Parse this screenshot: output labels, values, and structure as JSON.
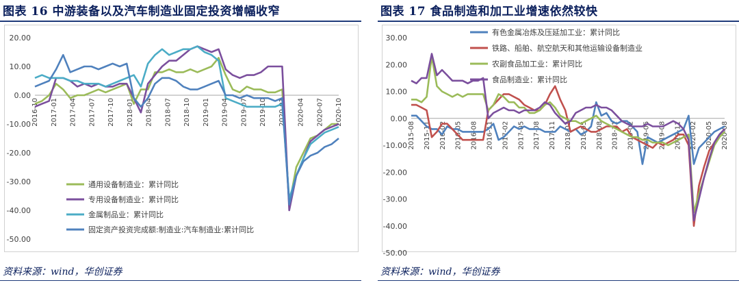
{
  "left": {
    "title": "图表 16   中游装备以及汽车制造业固定投资增幅收窄",
    "source": "资料来源：wind，华创证券"
  },
  "right": {
    "title": "图表 17   食品制造和加工业增速依然较快",
    "source": "资料来源：wind，华创证券"
  },
  "chart_data": [
    {
      "type": "line",
      "ylim": [
        -50,
        20
      ],
      "y_ticks": [
        "20.00",
        "10.00",
        "0.00",
        "-10.00",
        "-20.00",
        "-30.00",
        "-40.00",
        "-50.00"
      ],
      "x_tick_labels": [
        "2016-10",
        "2017-01",
        "2017-04",
        "2017-07",
        "2017-10",
        "2018-01",
        "2018-04",
        "2018-07",
        "2018-10",
        "2019-01",
        "2019-04",
        "2019-07",
        "2019-10",
        "2020-01",
        "2020-04",
        "2020-07",
        "2020-10"
      ],
      "legend_position": "bottom-left",
      "series": [
        {
          "name": "通用设备制造业：累计同比",
          "color": "#9bbb59",
          "values": [
            -3,
            -2,
            0,
            4,
            2,
            -1,
            0,
            0,
            1,
            2,
            1,
            2,
            3,
            4,
            -3,
            2,
            2,
            8,
            8,
            9,
            8,
            8,
            9,
            8,
            9,
            10,
            13,
            7,
            2,
            1,
            3,
            2,
            2,
            1,
            1,
            2,
            -38,
            -25,
            -20,
            -15,
            -14,
            -12,
            -10,
            -10
          ]
        },
        {
          "name": "专用设备制造业：累计同比",
          "color": "#7b4f9d",
          "values": [
            -4,
            -3,
            -2,
            6,
            6,
            5,
            3,
            4,
            3,
            4,
            3,
            3,
            4,
            4,
            -1,
            -6,
            4,
            7,
            10,
            12,
            12,
            14,
            16,
            17,
            16,
            15,
            16,
            9,
            7,
            6,
            7,
            7,
            8,
            10,
            10,
            10,
            -40,
            -28,
            -22,
            -16,
            -14,
            -12,
            -11,
            -10
          ]
        },
        {
          "name": "金属制品业：累计同比",
          "color": "#4bacc6",
          "values": [
            6,
            7,
            6,
            6,
            6,
            5,
            5,
            4,
            4,
            4,
            3,
            4,
            5,
            6,
            7,
            3,
            11,
            14,
            16,
            14,
            15,
            16,
            16,
            17,
            15,
            14,
            12,
            -1,
            -2,
            -3,
            -4,
            -4,
            -4,
            -4,
            -4,
            -3,
            -36,
            -28,
            -22,
            -17,
            -15,
            -13,
            -12,
            -11
          ]
        },
        {
          "name": "固定资产投资完成额:制造业:汽车制造业:累计同比",
          "color": "#4f81bd",
          "values": [
            3,
            4,
            5,
            9,
            14,
            8,
            9,
            10,
            10,
            9,
            10,
            11,
            10,
            11,
            -1,
            -4,
            -1,
            4,
            6,
            6,
            5,
            3,
            2,
            2,
            3,
            4,
            5,
            0,
            0,
            -1,
            0,
            -1,
            -1,
            -1,
            -2,
            -1,
            -38,
            -28,
            -23,
            -21,
            -20,
            -18,
            -17,
            -15
          ]
        }
      ]
    },
    {
      "type": "line",
      "ylim": [
        -50,
        30
      ],
      "y_ticks": [
        "30.00",
        "20.00",
        "10.00",
        "0.00",
        "-10.00",
        "-20.00",
        "-30.00",
        "-40.00",
        "-50.00"
      ],
      "x_tick_labels": [
        "2015-08",
        "2015-11",
        "2016-02",
        "2016-05",
        "2016-08",
        "2016-11",
        "2017-02",
        "2017-05",
        "2017-08",
        "2017-11",
        "2018-02",
        "2018-05",
        "2018-08",
        "2018-11",
        "2019-02",
        "2019-05",
        "2019-08",
        "2019-11",
        "2020-02",
        "2020-05",
        "2020-08"
      ],
      "legend_position": "top-left",
      "series": [
        {
          "name": "有色金属冶炼及压延加工业：累计同比",
          "color": "#4f81bd",
          "values": [
            1,
            1,
            -1,
            -3,
            -4,
            -4,
            -6,
            -3,
            -4,
            -4,
            -5,
            -5,
            -5,
            -5,
            -5,
            -4,
            -2,
            -8,
            -7,
            -5,
            -3,
            -4,
            -3,
            -4,
            -4,
            -4,
            -5,
            -5,
            -5,
            -3,
            -4,
            -5,
            -4,
            -6,
            -5,
            -3,
            6,
            1,
            2,
            -1,
            -2,
            -1,
            -1,
            -3,
            -5,
            -17,
            -7,
            -8,
            -9,
            -8,
            -7,
            -6,
            -5,
            -4,
            1,
            -17,
            -11,
            -9,
            -7,
            -5,
            -4,
            -3
          ]
        },
        {
          "name": "铁路、船舶、航空航天和其他运输设备制造业",
          "color": "#c0504d",
          "values": [
            5,
            5,
            4,
            3,
            -7,
            -5,
            -2,
            -2,
            -4,
            -6,
            -8,
            -8,
            -8,
            -8,
            -8,
            3,
            5,
            7,
            9,
            9,
            8,
            7,
            5,
            4,
            3,
            3,
            5,
            9,
            12,
            7,
            3,
            -5,
            -4,
            -3,
            -4,
            -5,
            -5,
            -4,
            -3,
            -3,
            -3,
            -5,
            -4,
            -7,
            -8,
            -9,
            -10,
            -11,
            -9,
            -10,
            -9,
            -8,
            -6,
            -6,
            -10,
            -40,
            -25,
            -18,
            -12,
            -9,
            -6,
            -4
          ]
        },
        {
          "name": "农副食品加工业：累计同比",
          "color": "#9bbb59",
          "values": [
            7,
            7,
            6,
            8,
            23,
            12,
            10,
            9,
            8,
            9,
            8,
            9,
            9,
            9,
            9,
            3,
            5,
            9,
            8,
            6,
            6,
            4,
            4,
            2,
            2,
            3,
            5,
            6,
            4,
            1,
            0,
            -1,
            -1,
            -2,
            -1,
            0,
            1,
            -1,
            -2,
            -3,
            -4,
            -5,
            -6,
            -7,
            -7,
            -8,
            -8,
            -9,
            -9,
            -9,
            -10,
            -9,
            -8,
            -7,
            -6,
            -35,
            -28,
            -22,
            -16,
            -10,
            -7,
            -5
          ]
        },
        {
          "name": "食品制造业：累计同比",
          "color": "#7b4f9d",
          "values": [
            14,
            13,
            15,
            15,
            24,
            16,
            18,
            16,
            14,
            14,
            14,
            13,
            14,
            14,
            15,
            0,
            2,
            3,
            4,
            3,
            3,
            2,
            3,
            3,
            3,
            4,
            6,
            5,
            2,
            0,
            -2,
            -1,
            2,
            3,
            4,
            4,
            5,
            4,
            4,
            3,
            1,
            -1,
            -2,
            -3,
            -3,
            -3,
            -2,
            -3,
            -3,
            -3,
            -2,
            -1,
            -2,
            -4,
            -8,
            -38,
            -30,
            -22,
            -15,
            -9,
            -6,
            -4
          ]
        }
      ]
    }
  ]
}
